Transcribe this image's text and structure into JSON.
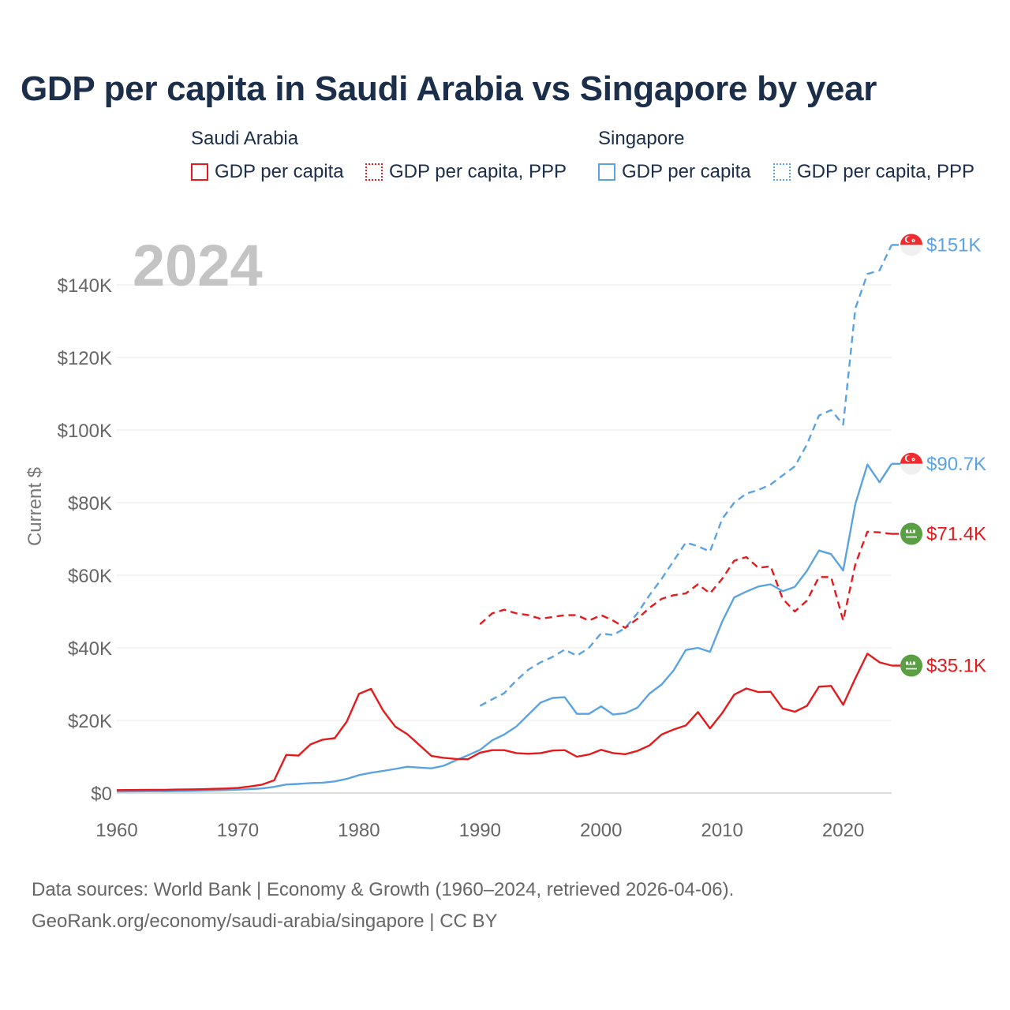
{
  "chart_data": {
    "type": "line",
    "title": "GDP per capita in Saudi Arabia vs Singapore by year",
    "ylabel": "Current $",
    "xlabel": "",
    "year_watermark": "2024",
    "xlim": [
      1960,
      2024
    ],
    "ylim": [
      0,
      150000
    ],
    "x_ticks": [
      1960,
      1970,
      1980,
      1990,
      2000,
      2010,
      2020
    ],
    "y_ticks": [
      {
        "value": 0,
        "label": "$0"
      },
      {
        "value": 20000,
        "label": "$20K"
      },
      {
        "value": 40000,
        "label": "$40K"
      },
      {
        "value": 60000,
        "label": "$60K"
      },
      {
        "value": 80000,
        "label": "$80K"
      },
      {
        "value": 100000,
        "label": "$100K"
      },
      {
        "value": 120000,
        "label": "$120K"
      },
      {
        "value": 140000,
        "label": "$140K"
      }
    ],
    "legend": {
      "groups": [
        {
          "country": "Saudi Arabia",
          "items": [
            "GDP per capita",
            "GDP per capita, PPP"
          ],
          "color": "#e41a1c"
        },
        {
          "country": "Singapore",
          "items": [
            "GDP per capita",
            "GDP per capita, PPP"
          ],
          "color": "#5ba3e0"
        }
      ]
    },
    "series": [
      {
        "name": "Singapore GDP per capita, PPP",
        "country": "Singapore",
        "color": "#5ba3e0",
        "dashed": true,
        "end_label": "$151K",
        "flag": "singapore-flag",
        "x": [
          1990,
          1991,
          1992,
          1993,
          1994,
          1995,
          1996,
          1997,
          1998,
          1999,
          2000,
          2001,
          2002,
          2003,
          2004,
          2005,
          2006,
          2007,
          2008,
          2009,
          2010,
          2011,
          2012,
          2013,
          2014,
          2015,
          2016,
          2017,
          2018,
          2019,
          2020,
          2021,
          2022,
          2023,
          2024
        ],
        "values": [
          24000,
          25800,
          27500,
          31000,
          34000,
          36000,
          37500,
          39500,
          37800,
          40000,
          44000,
          43500,
          45500,
          49500,
          54500,
          59000,
          64000,
          69000,
          68000,
          66500,
          75500,
          80000,
          82500,
          83500,
          85000,
          87500,
          90000,
          96000,
          104000,
          105500,
          101500,
          133500,
          143000,
          144000,
          151000
        ]
      },
      {
        "name": "Singapore GDP per capita",
        "country": "Singapore",
        "color": "#5ba3e0",
        "dashed": false,
        "end_label": "$90.7K",
        "flag": "singapore-flag",
        "x": [
          1960,
          1961,
          1962,
          1963,
          1964,
          1965,
          1966,
          1967,
          1968,
          1969,
          1970,
          1971,
          1972,
          1973,
          1974,
          1975,
          1976,
          1977,
          1978,
          1979,
          1980,
          1981,
          1982,
          1983,
          1984,
          1985,
          1986,
          1987,
          1988,
          1989,
          1990,
          1991,
          1992,
          1993,
          1994,
          1995,
          1996,
          1997,
          1998,
          1999,
          2000,
          2001,
          2002,
          2003,
          2004,
          2005,
          2006,
          2007,
          2008,
          2009,
          2010,
          2011,
          2012,
          2013,
          2014,
          2015,
          2016,
          2017,
          2018,
          2019,
          2020,
          2021,
          2022,
          2023,
          2024
        ],
        "values": [
          428,
          449,
          472,
          511,
          485,
          517,
          566,
          627,
          708,
          812,
          925,
          1071,
          1264,
          1685,
          2341,
          2490,
          2746,
          2846,
          3194,
          3901,
          4928,
          5597,
          6078,
          6633,
          7235,
          6990,
          6800,
          7500,
          9000,
          10400,
          11860,
          14500,
          16100,
          18300,
          21600,
          24900,
          26200,
          26400,
          21800,
          21800,
          23900,
          21600,
          22000,
          23500,
          27400,
          29900,
          33800,
          39400,
          40000,
          38900,
          47200,
          53900,
          55500,
          56900,
          57500,
          55600,
          56800,
          61200,
          66800,
          65800,
          61300,
          79600,
          90500,
          85600,
          90700
        ]
      },
      {
        "name": "Saudi Arabia GDP per capita, PPP",
        "country": "Saudi Arabia",
        "color": "#e41a1c",
        "dashed": true,
        "end_label": "$71.4K",
        "flag": "saudi-arabia-flag",
        "x": [
          1990,
          1991,
          1992,
          1993,
          1994,
          1995,
          1996,
          1997,
          1998,
          1999,
          2000,
          2001,
          2002,
          2003,
          2004,
          2005,
          2006,
          2007,
          2008,
          2009,
          2010,
          2011,
          2012,
          2013,
          2014,
          2015,
          2016,
          2017,
          2018,
          2019,
          2020,
          2021,
          2022,
          2023,
          2024
        ],
        "values": [
          46500,
          49500,
          50500,
          49500,
          49000,
          48000,
          48500,
          49000,
          49000,
          47500,
          49000,
          47500,
          45500,
          48000,
          51000,
          53500,
          54500,
          55000,
          57500,
          55000,
          59000,
          64000,
          65000,
          62000,
          62500,
          53500,
          50000,
          53000,
          59500,
          59500,
          47500,
          63000,
          72000,
          71800,
          71400
        ]
      },
      {
        "name": "Saudi Arabia GDP per capita",
        "country": "Saudi Arabia",
        "color": "#e41a1c",
        "dashed": false,
        "end_label": "$35.1K",
        "flag": "saudi-arabia-flag",
        "x": [
          1960,
          1961,
          1962,
          1963,
          1964,
          1965,
          1966,
          1967,
          1968,
          1969,
          1970,
          1971,
          1972,
          1973,
          1974,
          1975,
          1976,
          1977,
          1978,
          1979,
          1980,
          1981,
          1982,
          1983,
          1984,
          1985,
          1986,
          1987,
          1988,
          1989,
          1990,
          1991,
          1992,
          1993,
          1994,
          1995,
          1996,
          1997,
          1998,
          1999,
          2000,
          2001,
          2002,
          2003,
          2004,
          2005,
          2006,
          2007,
          2008,
          2009,
          2010,
          2011,
          2012,
          2013,
          2014,
          2015,
          2016,
          2017,
          2018,
          2019,
          2020,
          2021,
          2022,
          2023,
          2024
        ],
        "values": [
          800,
          830,
          850,
          880,
          900,
          950,
          1000,
          1050,
          1150,
          1250,
          1400,
          1800,
          2300,
          3500,
          10500,
          10300,
          13400,
          14700,
          15100,
          19700,
          27300,
          28700,
          22700,
          18300,
          16200,
          13200,
          10200,
          9700,
          9400,
          9300,
          11100,
          11800,
          11800,
          11000,
          10800,
          11000,
          11700,
          11800,
          10000,
          10600,
          11900,
          11000,
          10700,
          11600,
          13100,
          16100,
          17500,
          18600,
          22300,
          17800,
          22000,
          27100,
          28800,
          27800,
          27900,
          23300,
          22400,
          24000,
          29300,
          29500,
          24300,
          31600,
          38400,
          36000,
          35100
        ]
      }
    ],
    "source_lines": [
      "Data sources: World Bank | Economy & Growth (1960–2024, retrieved 2026-04-06).",
      "GeoRank.org/economy/saudi-arabia/singapore | CC BY"
    ]
  }
}
